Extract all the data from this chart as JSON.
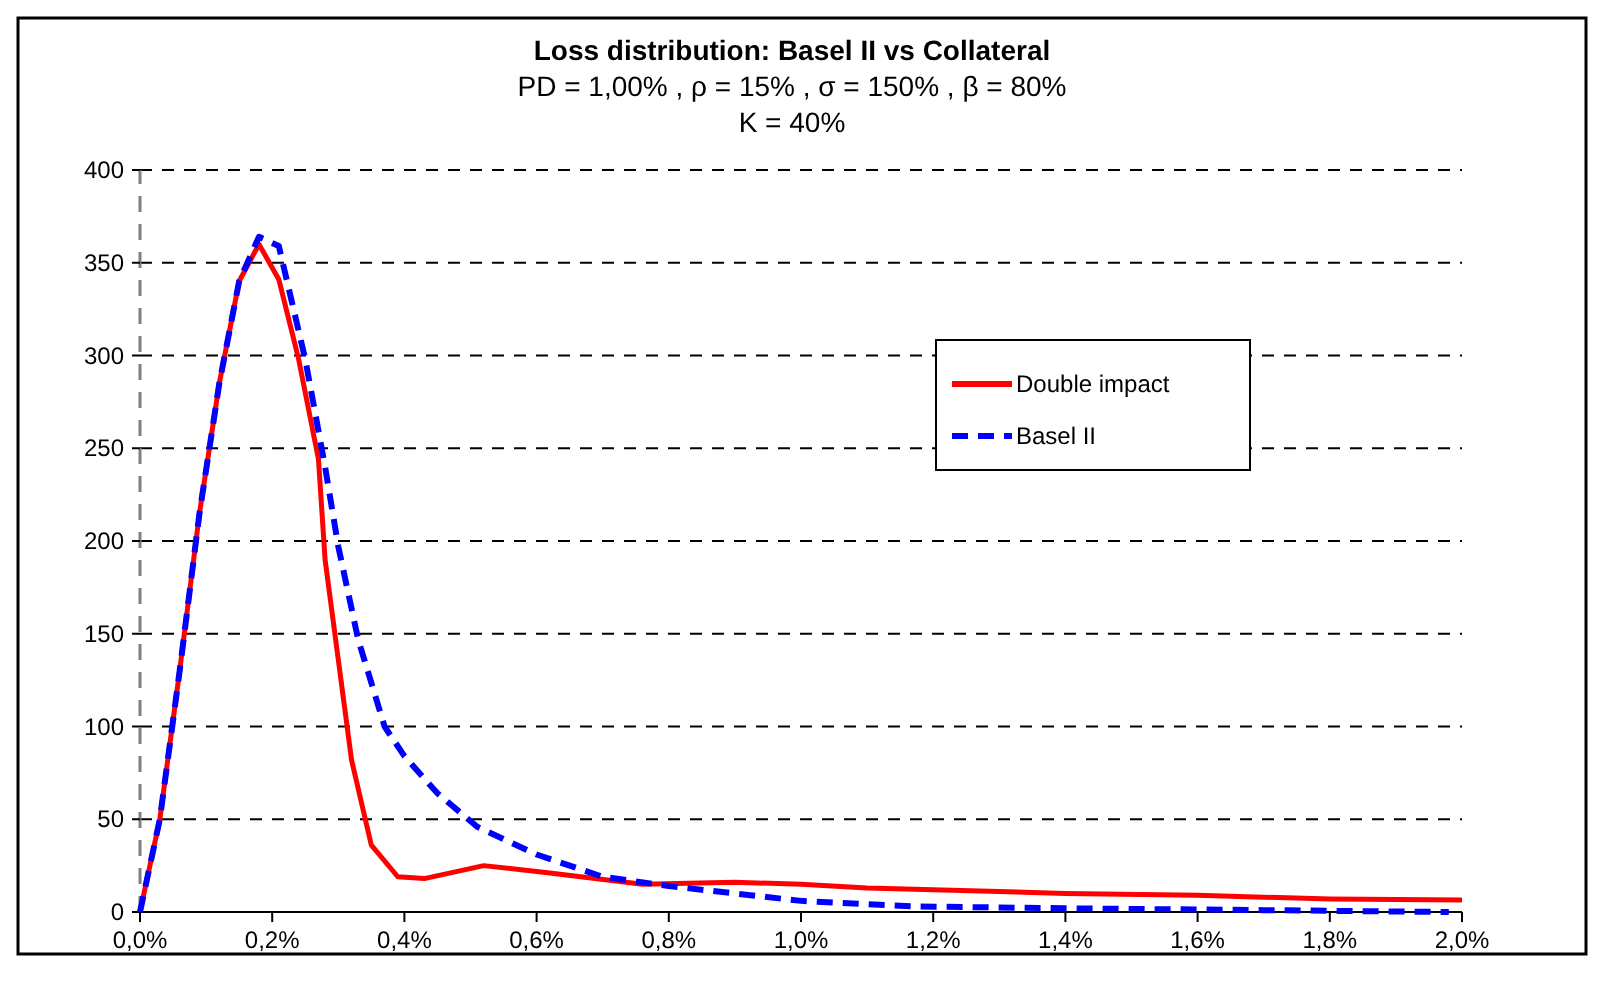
{
  "chart_data": {
    "type": "line",
    "title": "Loss distribution: Basel II vs Collateral",
    "subtitle": "PD = 1,00% , ρ = 15% , σ = 150% , β = 80%\nK = 40%",
    "xlim": [
      0,
      2
    ],
    "xticks": [
      {
        "value": 0,
        "label": "0,0%"
      },
      {
        "value": 0.2,
        "label": "0,2%"
      },
      {
        "value": 0.4,
        "label": "0,4%"
      },
      {
        "value": 0.6,
        "label": "0,6%"
      },
      {
        "value": 0.8,
        "label": "0,8%"
      },
      {
        "value": 1.0,
        "label": "1,0%"
      },
      {
        "value": 1.2,
        "label": "1,2%"
      },
      {
        "value": 1.4,
        "label": "1,4%"
      },
      {
        "value": 1.6,
        "label": "1,6%"
      },
      {
        "value": 1.8,
        "label": "1,8%"
      },
      {
        "value": 2.0,
        "label": "2,0%"
      }
    ],
    "ylim": [
      0,
      400
    ],
    "yticks": [
      0,
      50,
      100,
      150,
      200,
      250,
      300,
      350,
      400
    ],
    "grid": "y",
    "legend": "right",
    "marker": "none",
    "series": [
      {
        "name": "Double impact",
        "color": "#ff0000",
        "line_style": "solid",
        "x": [
          0,
          0.03,
          0.06,
          0.09,
          0.12,
          0.15,
          0.18,
          0.21,
          0.24,
          0.27,
          0.28,
          0.3,
          0.32,
          0.35,
          0.39,
          0.43,
          0.52,
          0.62,
          0.76,
          0.9,
          1.0,
          1.1,
          1.2,
          1.4,
          1.6,
          1.8,
          2.0
        ],
        "values": [
          0,
          50,
          130,
          215,
          285,
          340,
          360,
          341,
          298,
          244,
          190,
          136,
          82,
          36,
          19,
          18,
          25,
          21,
          15,
          16,
          15,
          13,
          12,
          10,
          9,
          7,
          6.5
        ]
      },
      {
        "name": "Basel II",
        "color": "#0000ff",
        "line_style": "dashed",
        "x": [
          0,
          0.03,
          0.06,
          0.09,
          0.12,
          0.15,
          0.18,
          0.21,
          0.25,
          0.28,
          0.3,
          0.33,
          0.37,
          0.4,
          0.45,
          0.51,
          0.6,
          0.7,
          0.8,
          0.9,
          1.0,
          1.17,
          1.4,
          1.7,
          1.98
        ],
        "values": [
          0,
          50,
          130,
          215,
          285,
          340,
          364,
          359,
          298,
          240,
          197,
          147,
          100,
          84,
          64,
          46,
          31,
          19,
          14,
          10,
          6,
          3,
          2,
          1,
          0
        ]
      }
    ]
  }
}
